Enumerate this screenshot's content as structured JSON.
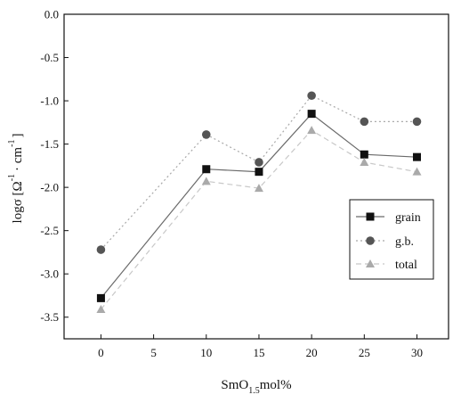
{
  "chart_data": {
    "type": "line",
    "x": [
      0,
      10,
      15,
      20,
      25,
      30
    ],
    "xticks": [
      0,
      5,
      10,
      15,
      20,
      25,
      30
    ],
    "yticks": [
      0.0,
      -0.5,
      -1.0,
      -1.5,
      -2.0,
      -2.5,
      -3.0,
      -3.5
    ],
    "ytick_labels": [
      "0.0",
      "-0.5",
      "-1.0",
      "-1.5",
      "-2.0",
      "-2.5",
      "-3.0",
      "-3.5"
    ],
    "xtick_labels": [
      "0",
      "5",
      "10",
      "15",
      "20",
      "25",
      "30"
    ],
    "xlim": [
      -3.5,
      33
    ],
    "ylim": [
      -3.75,
      0.0
    ],
    "xlabel": {
      "base": "SmO",
      "sub": "1.5",
      "rest": "mol%"
    },
    "ylabel": {
      "base": "logσ [Ω",
      "sup1": "-1",
      "mid": "· cm",
      "sup2": "-1",
      "end": "]"
    },
    "legend_position": "right",
    "grid": false,
    "series": [
      {
        "name": "grain",
        "marker": "square",
        "color": "#111111",
        "line_color": "#6a6a6a",
        "dash": "",
        "values": [
          -3.28,
          -1.79,
          -1.82,
          -1.15,
          -1.62,
          -1.65
        ]
      },
      {
        "name": "g.b.",
        "marker": "circle",
        "color": "#555555",
        "line_color": "#a8a8a8",
        "dash": "2,3",
        "values": [
          -2.72,
          -1.39,
          -1.71,
          -0.94,
          -1.24,
          -1.24
        ]
      },
      {
        "name": "total",
        "marker": "triangle",
        "color": "#aaaaaa",
        "line_color": "#c8c8c8",
        "dash": "6,4",
        "values": [
          -3.41,
          -1.93,
          -2.01,
          -1.34,
          -1.71,
          -1.82
        ]
      }
    ]
  }
}
